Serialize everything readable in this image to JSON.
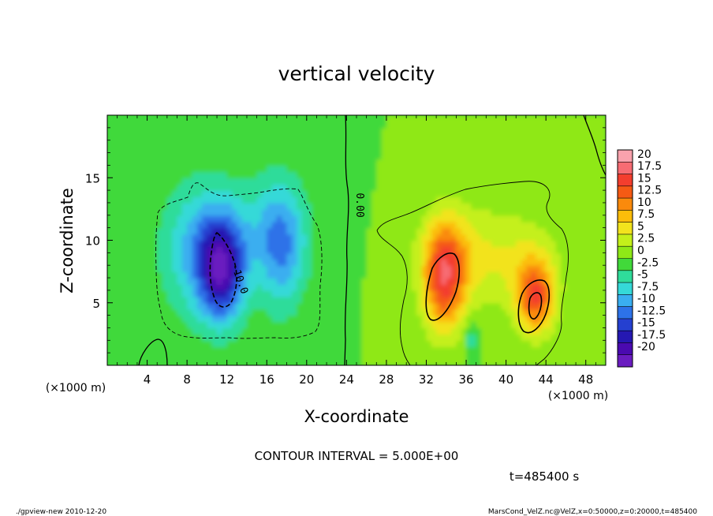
{
  "chart_data": {
    "type": "heatmap",
    "title": "vertical velocity",
    "xlabel": "X-coordinate",
    "ylabel": "Z-coordinate",
    "x_unit": "(×1000 m)",
    "y_unit": "(×1000 m)",
    "xlim": [
      0,
      50
    ],
    "ylim": [
      0,
      20
    ],
    "xticks": [
      4,
      8,
      12,
      16,
      20,
      24,
      28,
      32,
      36,
      40,
      44,
      48
    ],
    "xtick_labels": [
      "4",
      "8",
      "12",
      "16",
      "20",
      "24",
      "28",
      "32",
      "36",
      "40",
      "44",
      "48"
    ],
    "yticks": [
      5,
      10,
      15
    ],
    "ytick_labels": [
      "5",
      "10",
      "15"
    ],
    "contour_interval_text": "CONTOUR INTERVAL = 5.000E+00",
    "contour_label": "0.00",
    "contour_label_neg": "-10.0",
    "time_text": "t=485400 s",
    "colorbar": {
      "levels": [
        "20",
        "17.5",
        "15",
        "12.5",
        "10",
        "7.5",
        "5",
        "2.5",
        "0",
        "-2.5",
        "-5",
        "-7.5",
        "-10",
        "-12.5",
        "-15",
        "-17.5",
        "-20"
      ],
      "colors": [
        "#f9a2ad",
        "#f76c73",
        "#f33e2e",
        "#f55a14",
        "#fa8a0c",
        "#fcbd0a",
        "#f2e31d",
        "#c4f01a",
        "#8fe817",
        "#41d93a",
        "#2fdc9a",
        "#35d9d8",
        "#3aaef0",
        "#2d72e8",
        "#2540d0",
        "#2518b2",
        "#4a0ab0",
        "#6a1cc0"
      ]
    },
    "field_centers": [
      {
        "x": 11.5,
        "z": 7.5,
        "sx": 1.6,
        "sz": 2.8,
        "w": -16
      },
      {
        "x": 9,
        "z": 9,
        "sx": 2.6,
        "sz": 3.8,
        "w": -7
      },
      {
        "x": 17.5,
        "z": 9.5,
        "sx": 1.7,
        "sz": 3.6,
        "w": -9
      },
      {
        "x": 14,
        "z": 11,
        "sx": 4,
        "sz": 3,
        "w": -4
      },
      {
        "x": 33.8,
        "z": 7,
        "sx": 1.5,
        "sz": 3.0,
        "w": 15
      },
      {
        "x": 36,
        "z": 9,
        "sx": 3.2,
        "sz": 2.8,
        "w": 5
      },
      {
        "x": 43,
        "z": 5.5,
        "sx": 1.3,
        "sz": 2.0,
        "w": 13
      },
      {
        "x": 42,
        "z": 8,
        "sx": 2.6,
        "sz": 3.0,
        "w": 4
      },
      {
        "x": 36.5,
        "z": 2.2,
        "sx": 0.5,
        "sz": 0.9,
        "w": -5
      }
    ]
  },
  "footer": {
    "left": "./gpview-new 2010-12-20",
    "right": "MarsCond_VelZ.nc@VelZ,x=0:50000,z=0:20000,t=485400"
  }
}
